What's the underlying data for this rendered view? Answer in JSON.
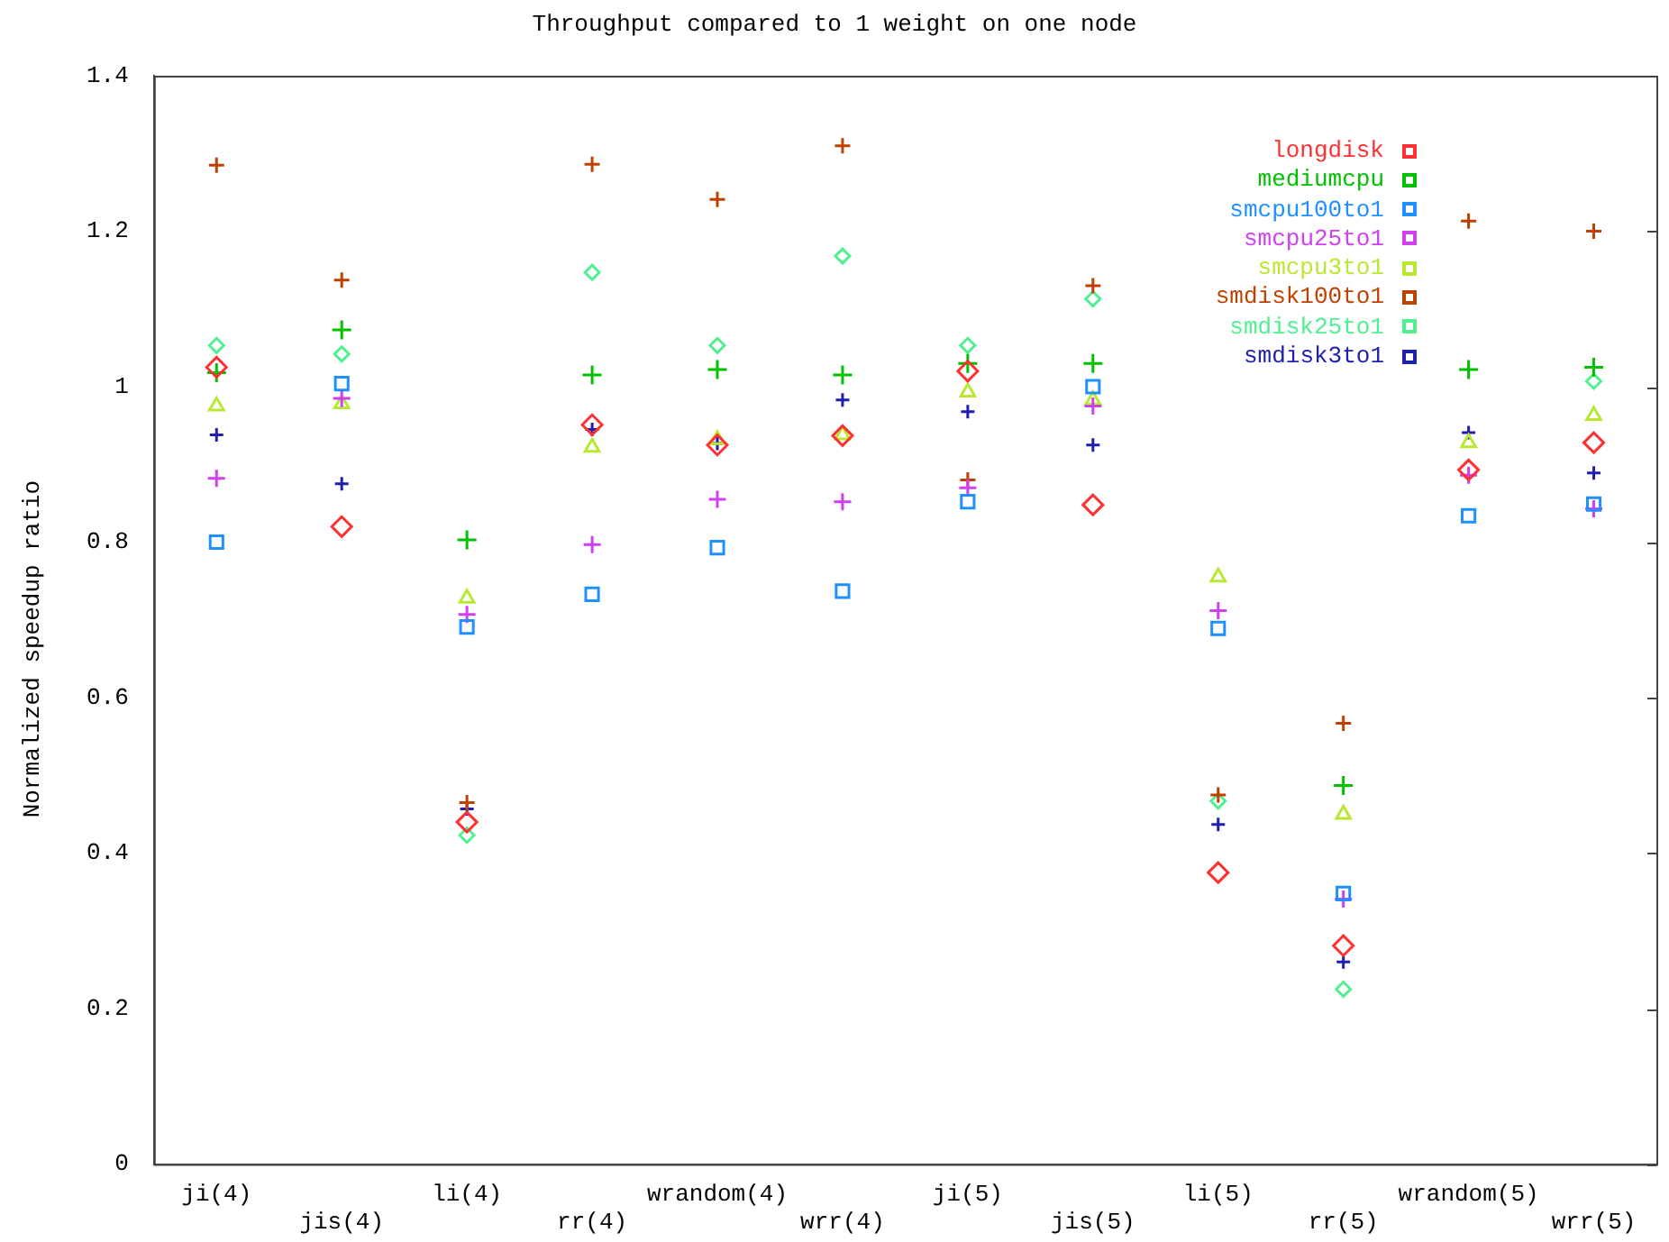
{
  "chart_data": {
    "type": "scatter",
    "title": "Throughput compared to 1 weight on one node",
    "ylabel": "Normalized speedup ratio",
    "categories": [
      "ji(4)",
      "jis(4)",
      "li(4)",
      "rr(4)",
      "wrandom(4)",
      "wrr(4)",
      "ji(5)",
      "jis(5)",
      "li(5)",
      "rr(5)",
      "wrandom(5)",
      "wrr(5)"
    ],
    "ylim": [
      0,
      1.4
    ],
    "yticks": [
      0,
      0.2,
      0.4,
      0.6,
      0.8,
      1,
      1.2,
      1.4
    ],
    "grid": false,
    "legend": "top right",
    "series": [
      {
        "name": "longdisk",
        "color": "#ff3030",
        "marker": "diamond",
        "values": [
          1.025,
          0.82,
          0.44,
          0.951,
          0.925,
          0.937,
          1.02,
          0.848,
          0.375,
          0.281,
          0.893,
          0.928
        ]
      },
      {
        "name": "mediumcpu",
        "color": "#00c000",
        "marker": "cross",
        "values": [
          1.018,
          1.073,
          0.803,
          1.015,
          1.022,
          1.015,
          1.03,
          1.03,
          null,
          0.487,
          1.022,
          1.025
        ]
      },
      {
        "name": "smcpu100to1",
        "color": "#1e90ff",
        "marker": "square",
        "values": [
          0.8,
          1.004,
          0.691,
          0.733,
          0.793,
          0.737,
          0.852,
          1.0,
          0.689,
          0.348,
          0.834,
          0.849
        ]
      },
      {
        "name": "smcpu25to1",
        "color": "#d040f0",
        "marker": "cross",
        "values": [
          0.882,
          0.985,
          0.707,
          0.797,
          0.855,
          0.852,
          0.87,
          0.975,
          0.712,
          0.341,
          0.886,
          0.843
        ]
      },
      {
        "name": "smcpu3to1",
        "color": "#b8e830",
        "marker": "triangle",
        "values": [
          0.975,
          0.978,
          0.728,
          0.922,
          0.932,
          0.938,
          0.993,
          0.983,
          0.755,
          0.45,
          0.928,
          0.963
        ]
      },
      {
        "name": "smdisk100to1",
        "color": "#c04000",
        "marker": "cross",
        "values": [
          1.285,
          1.137,
          0.465,
          1.286,
          1.241,
          1.31,
          0.88,
          1.13,
          0.475,
          0.567,
          1.213,
          1.2
        ]
      },
      {
        "name": "smdisk25to1",
        "color": "#50f090",
        "marker": "diamond",
        "values": [
          1.053,
          1.042,
          0.423,
          1.147,
          1.053,
          1.168,
          1.053,
          1.113,
          0.467,
          0.225,
          null,
          1.007
        ]
      },
      {
        "name": "smdisk3to1",
        "color": "#2020b0",
        "marker": "cross",
        "values": [
          0.938,
          0.875,
          0.457,
          0.945,
          0.927,
          0.983,
          0.968,
          0.925,
          0.437,
          0.26,
          0.941,
          0.889
        ]
      }
    ]
  }
}
